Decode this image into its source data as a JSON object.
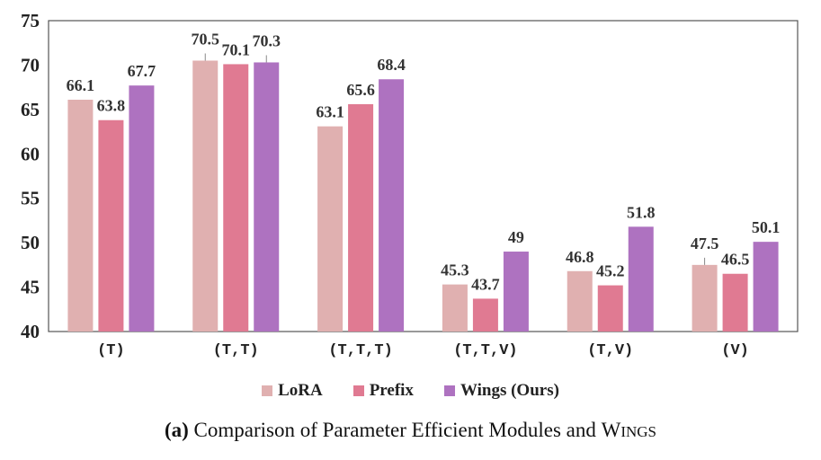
{
  "chart_data": {
    "type": "bar",
    "categories": [
      "(T)",
      "(T,T)",
      "(T,T,T)",
      "(T,T,V)",
      "(T,V)",
      "(V)"
    ],
    "series": [
      {
        "name": "LoRA",
        "color": "#e0b0b0",
        "values": [
          66.1,
          70.5,
          63.1,
          45.3,
          46.8,
          47.5
        ],
        "labels": [
          "66.1",
          "70.5",
          "63.1",
          "45.3",
          "46.8",
          "47.5"
        ]
      },
      {
        "name": "Prefix",
        "color": "#e07a92",
        "values": [
          63.8,
          70.1,
          65.6,
          43.7,
          45.2,
          46.5
        ],
        "labels": [
          "63.8",
          "70.1",
          "65.6",
          "43.7",
          "45.2",
          "46.5"
        ]
      },
      {
        "name": "Wings (Ours)",
        "color": "#ae72c0",
        "values": [
          67.7,
          70.3,
          68.4,
          49,
          51.8,
          50.1
        ],
        "labels": [
          "67.7",
          "70.3",
          "68.4",
          "49",
          "51.8",
          "50.1"
        ]
      }
    ],
    "y_ticks": [
      "40",
      "45",
      "50",
      "55",
      "60",
      "65",
      "70",
      "75"
    ],
    "ylim": [
      40,
      75
    ],
    "grid": false,
    "legend_position": "bottom"
  },
  "caption": {
    "label": "(a)",
    "text": "Comparison of Parameter Efficient Modules and ",
    "wings_initial": "W",
    "wings_rest": "INGS"
  }
}
